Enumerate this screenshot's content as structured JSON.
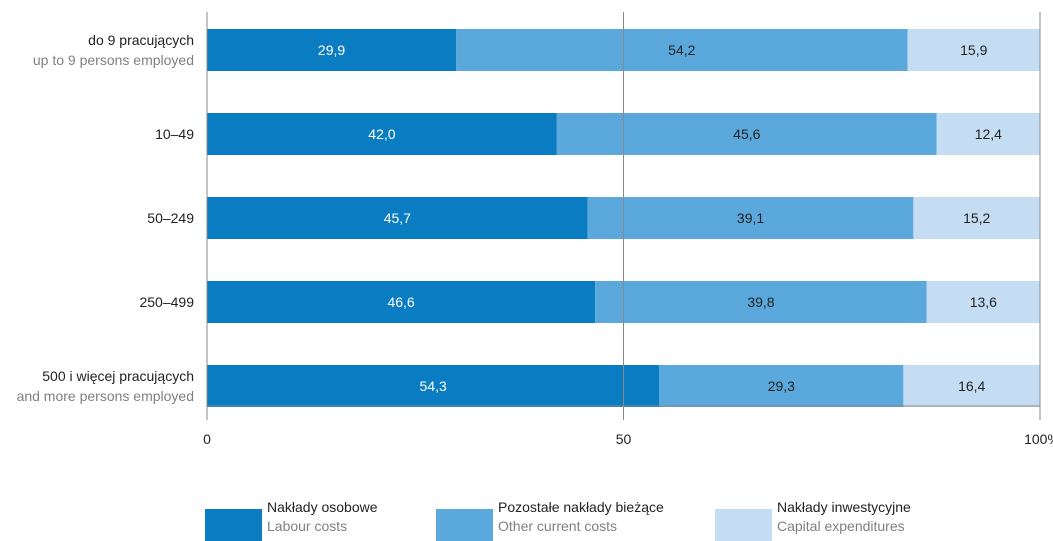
{
  "chart_data": {
    "type": "bar",
    "orientation": "horizontal",
    "stacked": true,
    "categories": [
      {
        "label": "do 9 pracujących",
        "sublabel": "up to 9 persons employed"
      },
      {
        "label": "10–49",
        "sublabel": ""
      },
      {
        "label": "50–249",
        "sublabel": ""
      },
      {
        "label": "250–499",
        "sublabel": ""
      },
      {
        "label": "500 i więcej pracujących",
        "sublabel": "and more persons employed"
      }
    ],
    "series": [
      {
        "name": "Nakłady osobowe",
        "subname": "Labour costs",
        "color": "#0a7cc1",
        "label_color": "#ffffff",
        "values": [
          29.9,
          42.0,
          45.7,
          46.6,
          54.3
        ],
        "labels": [
          "29,9",
          "42,0",
          "45,7",
          "46,6",
          "54,3"
        ]
      },
      {
        "name": "Pozostałe nakłady bieżące",
        "subname": "Other current costs",
        "color": "#5ba8dc",
        "label_color": "#222222",
        "values": [
          54.2,
          45.6,
          39.1,
          39.8,
          29.3
        ],
        "labels": [
          "54,2",
          "45,6",
          "39,1",
          "39,8",
          "29,3"
        ]
      },
      {
        "name": "Nakłady inwestycyjne",
        "subname": "Capital expenditures",
        "color": "#c5ddf2",
        "label_color": "#222222",
        "values": [
          15.9,
          12.4,
          15.2,
          13.6,
          16.4
        ],
        "labels": [
          "15,9",
          "12,4",
          "15,2",
          "13,6",
          "16,4"
        ]
      }
    ],
    "xlim": [
      0,
      100
    ],
    "xticks": [
      {
        "value": 0,
        "label": "0"
      },
      {
        "value": 50,
        "label": "50"
      },
      {
        "value": 100,
        "label": "100%"
      }
    ],
    "grid": true,
    "legend_position": "bottom"
  }
}
